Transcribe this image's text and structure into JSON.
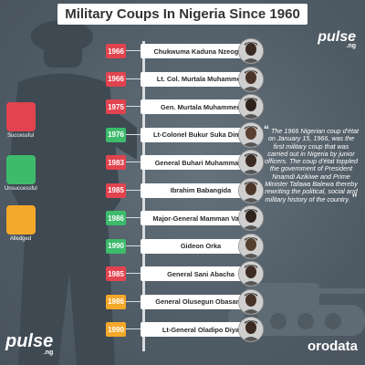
{
  "title": "Military Coups In Nigeria Since 1960",
  "brand": {
    "top_logo": "pulse",
    "top_sub": ".ng",
    "bottom_logo": "pulse",
    "bottom_sub": ".ng",
    "source": "orodata"
  },
  "legend": [
    {
      "label": "Successful",
      "color": "#e2444f"
    },
    {
      "label": "Unsuccessful",
      "color": "#3dbb6b"
    },
    {
      "label": "Alledged",
      "color": "#f4a82a"
    }
  ],
  "coups": [
    {
      "year": "1966",
      "name": "Chukwuma Kaduna Nzeogwu",
      "status": "successful",
      "color": "#e2444f"
    },
    {
      "year": "1966",
      "name": "Lt. Col. Murtala Muhammed",
      "status": "successful",
      "color": "#e2444f"
    },
    {
      "year": "1975",
      "name": "Gen. Murtala Muhammed",
      "status": "successful",
      "color": "#e2444f"
    },
    {
      "year": "1976",
      "name": "Lt-Colonel Bukur Suka Dimka",
      "status": "unsuccessful",
      "color": "#3dbb6b"
    },
    {
      "year": "1983",
      "name": "General Buhari Muhammadu",
      "status": "successful",
      "color": "#e2444f"
    },
    {
      "year": "1985",
      "name": "Ibrahim Babangida",
      "status": "successful",
      "color": "#e2444f"
    },
    {
      "year": "1986",
      "name": "Major-General Mamman Vatsa",
      "status": "unsuccessful",
      "color": "#3dbb6b"
    },
    {
      "year": "1990",
      "name": "Gideon Orka",
      "status": "unsuccessful",
      "color": "#3dbb6b"
    },
    {
      "year": "1985",
      "name": "General Sani Abacha",
      "status": "successful",
      "color": "#e2444f"
    },
    {
      "year": "1986",
      "name": "General Olusegun Obasanjo",
      "status": "alledged",
      "color": "#f4a82a"
    },
    {
      "year": "1990",
      "name": "Lt-General Oladipo Diya",
      "status": "alledged",
      "color": "#f4a82a"
    }
  ],
  "quote": {
    "open": "“",
    "text": "The 1966 Nigerian coup d'état on January 15, 1966, was the first military coup that was carried out in Nigeria by junior officers. The coup d'état toppled the government of President Nnamdi Azikiwe and Prime Minister Tafawa Balewa thereby rewriting the political, social and military history of the country.",
    "close": "”"
  }
}
